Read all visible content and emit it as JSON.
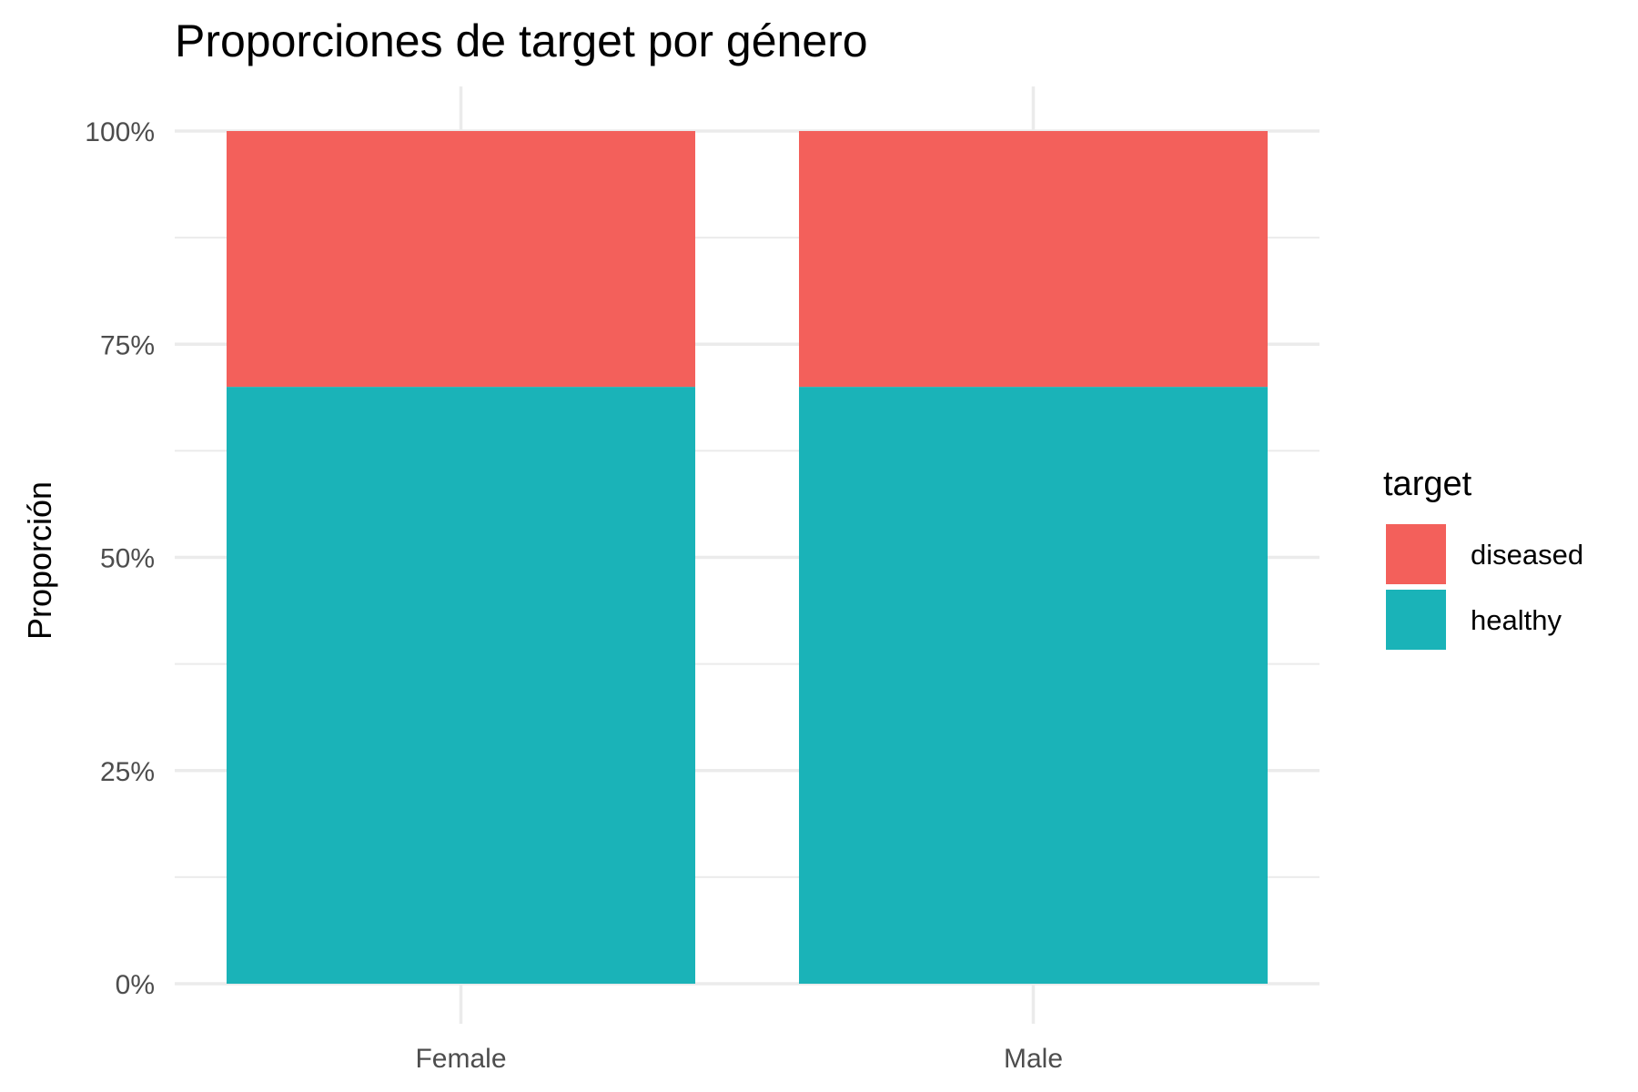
{
  "chart_data": {
    "type": "bar",
    "stacked": true,
    "title": "Proporciones de target por género",
    "xlabel": "",
    "ylabel": "Proporción",
    "categories": [
      "Female",
      "Male"
    ],
    "series": [
      {
        "name": "diseased",
        "color": "#f3605b",
        "values": [
          0.3,
          0.3
        ]
      },
      {
        "name": "healthy",
        "color": "#1ab3b8",
        "values": [
          0.7,
          0.7
        ]
      }
    ],
    "ylim": [
      0,
      1
    ],
    "yticks": [
      0,
      0.25,
      0.5,
      0.75,
      1
    ],
    "ytick_labels": [
      "0%",
      "25%",
      "50%",
      "75%",
      "100%"
    ],
    "grid": true,
    "legend": {
      "title": "target",
      "position": "right",
      "entries": [
        "diseased",
        "healthy"
      ]
    },
    "colors": {
      "grid": "#ebebeb",
      "background": "#ffffff"
    }
  }
}
